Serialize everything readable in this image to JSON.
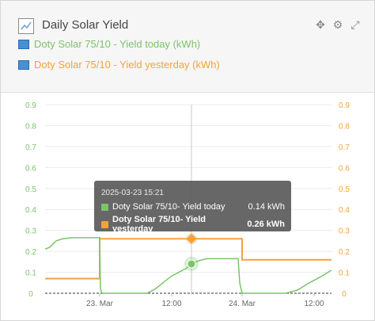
{
  "widget": {
    "title": "Daily Solar Yield",
    "tools": [
      "move-icon",
      "gear-icon",
      "expand-icon"
    ]
  },
  "legend": [
    {
      "label": "Doty Solar 75/10 - Yield today (kWh)",
      "color": "#7cc36a"
    },
    {
      "label": "Doty Solar 75/10 - Yield yesterday (kWh)",
      "color": "#f3a33a"
    }
  ],
  "tooltip": {
    "date": "2025-03-23 15:21",
    "rows": [
      {
        "name": "Doty Solar 75/10- Yield today",
        "value": "0.14 kWh",
        "color": "#7cc36a"
      },
      {
        "name": "Doty Solar 75/10- Yield yesterday",
        "value": "0.26 kWh",
        "color": "#f3a33a"
      }
    ]
  },
  "chart_data": {
    "type": "line",
    "x_ticks": [
      "23. Mar",
      "12:00",
      "24. Mar",
      "12:00"
    ],
    "y_ticks": [
      "0",
      "0.1",
      "0.2",
      "0.3",
      "0.4",
      "0.5",
      "0.6",
      "0.7",
      "0.8",
      "0.9"
    ],
    "ylim": [
      0,
      0.9
    ],
    "grid": true,
    "series": [
      {
        "name": "Doty Solar 75/10 - Yield today (kWh)",
        "color": "#7cc36a"
      },
      {
        "name": "Doty Solar 75/10 - Yield yesterday (kWh)",
        "color": "#f3a33a"
      }
    ]
  }
}
